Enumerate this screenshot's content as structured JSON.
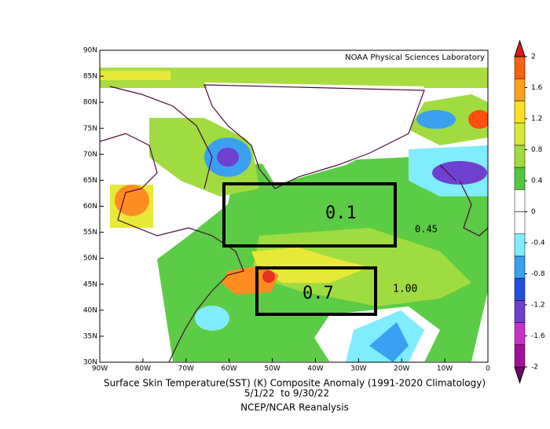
{
  "map": {
    "credit": "NOAA Physical Sciences Laboratory",
    "title": "Surface Skin Temperature(SST) (K) Composite Anomaly (1991-2020 Climatology)",
    "subtitle": "5/1/22  to 9/30/22",
    "source": "NCEP/NCAR Reanalysis",
    "xlim": [
      -90,
      0
    ],
    "xticks": [
      {
        "value": -90,
        "label": "90W"
      },
      {
        "value": -80,
        "label": "80W"
      },
      {
        "value": -70,
        "label": "70W"
      },
      {
        "value": -60,
        "label": "60W"
      },
      {
        "value": -50,
        "label": "50W"
      },
      {
        "value": -40,
        "label": "40W"
      },
      {
        "value": -30,
        "label": "30W"
      },
      {
        "value": -20,
        "label": "20W"
      },
      {
        "value": -10,
        "label": "10W"
      },
      {
        "value": 0,
        "label": "0"
      }
    ],
    "ylim": [
      30,
      90
    ],
    "yticks": [
      {
        "value": 30,
        "label": "30N"
      },
      {
        "value": 35,
        "label": "35N"
      },
      {
        "value": 40,
        "label": "40N"
      },
      {
        "value": 45,
        "label": "45N"
      },
      {
        "value": 50,
        "label": "50N"
      },
      {
        "value": 55,
        "label": "55N"
      },
      {
        "value": 60,
        "label": "60N"
      },
      {
        "value": 65,
        "label": "65N"
      },
      {
        "value": 70,
        "label": "70N"
      },
      {
        "value": 75,
        "label": "75N"
      },
      {
        "value": 80,
        "label": "80N"
      },
      {
        "value": 85,
        "label": "85N"
      },
      {
        "value": 90,
        "label": "90N"
      }
    ],
    "colorbar": {
      "lim": [
        -2,
        2
      ],
      "ticks": [
        -2,
        -1.6,
        -1.2,
        -0.8,
        -0.4,
        0,
        0.4,
        0.8,
        1.2,
        1.6,
        2
      ],
      "colors": [
        "#6a0a6a",
        "#a0109a",
        "#c830c8",
        "#7040d0",
        "#2050e0",
        "#3aa0f0",
        "#80ecff",
        "#ffffff",
        "#ffffff",
        "#50c840",
        "#a0dc40",
        "#d8e838",
        "#ffe020",
        "#ffa020",
        "#ff6010",
        "#e01818"
      ]
    },
    "annotations": [
      "0.1",
      "0.7",
      "0.45",
      "1.00"
    ]
  }
}
